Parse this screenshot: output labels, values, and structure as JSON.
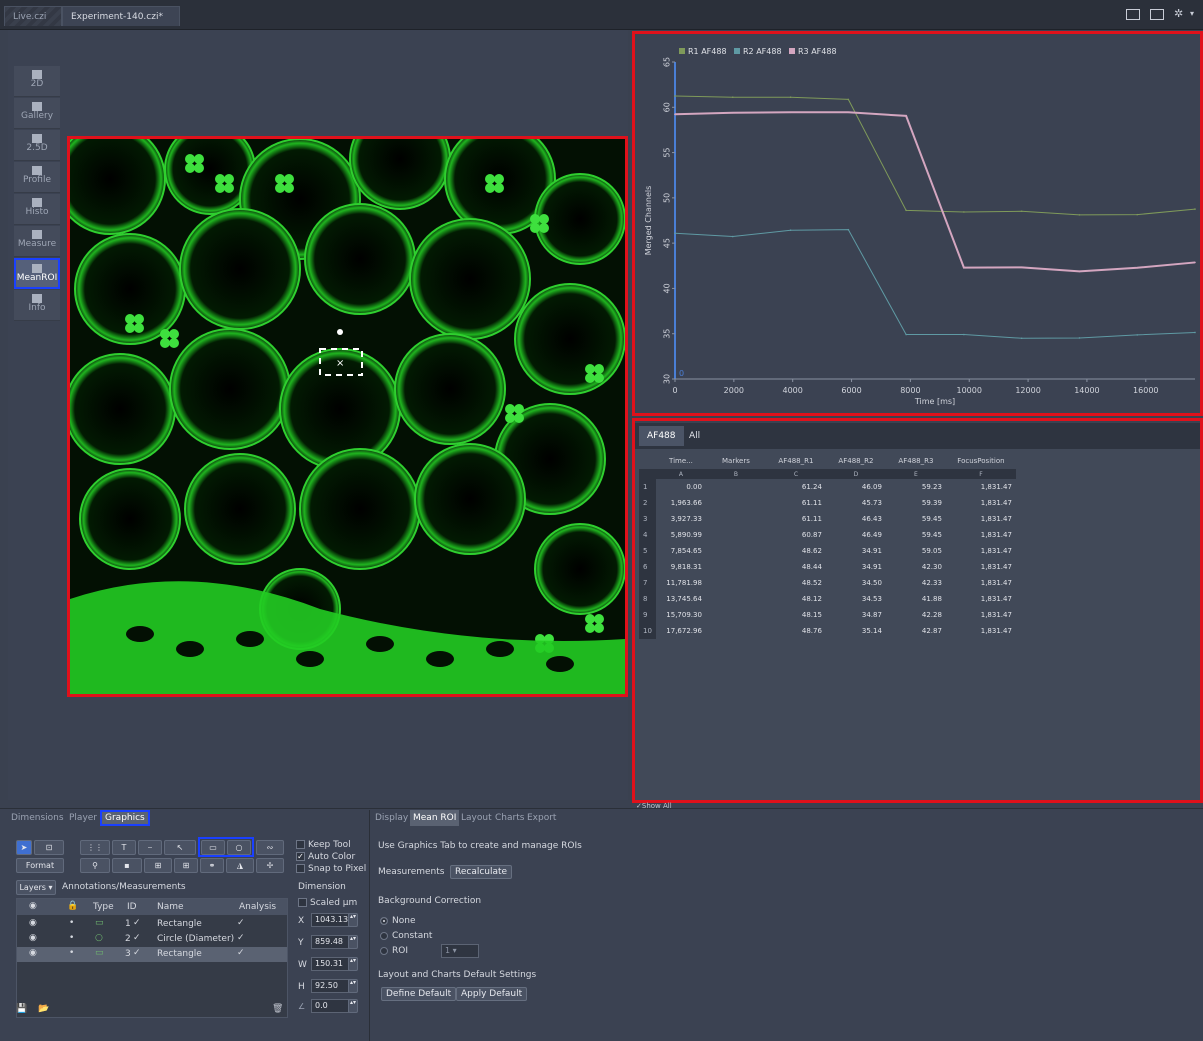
{
  "tabs": [
    {
      "label": "Live.czi",
      "active": false
    },
    {
      "label": "Experiment-140.czi*",
      "active": true
    }
  ],
  "view_buttons": [
    {
      "label": "2D",
      "icon": "2d-view-icon"
    },
    {
      "label": "Gallery",
      "icon": "gallery-icon"
    },
    {
      "label": "2.5D",
      "icon": "2.5d-icon"
    },
    {
      "label": "Profile",
      "icon": "profile-icon"
    },
    {
      "label": "Histo",
      "icon": "histogram-icon"
    },
    {
      "label": "Measure",
      "icon": "measure-icon"
    },
    {
      "label": "MeanROI",
      "icon": "mean-roi-icon",
      "selected": true
    },
    {
      "label": "Info",
      "icon": "info-icon"
    }
  ],
  "chart_data": {
    "type": "line",
    "legend": "top-left",
    "ylabel": "Merged Channels",
    "xlabel": "Time [ms]",
    "x_ticks": [
      "0",
      "2000",
      "4000",
      "6000",
      "8000",
      "10000",
      "12000",
      "14000",
      "16000"
    ],
    "y_ticks": [
      "30",
      "35",
      "40",
      "45",
      "50",
      "55",
      "60",
      "65"
    ],
    "xlim": [
      0,
      17672.96
    ],
    "ylim": [
      30,
      65
    ],
    "origin_label": "0",
    "x": [
      0,
      1963.66,
      3927.33,
      5890.99,
      7854.65,
      9818.31,
      11781.98,
      13745.64,
      15709.3,
      17672.96
    ],
    "series": [
      {
        "name": "R1 AF488",
        "color": "#7f9a5a",
        "values": [
          61.24,
          61.11,
          61.11,
          60.87,
          48.62,
          48.44,
          48.52,
          48.12,
          48.15,
          48.76
        ]
      },
      {
        "name": "R2 AF488",
        "color": "#5f9aa4",
        "values": [
          46.09,
          45.73,
          46.43,
          46.49,
          34.91,
          34.91,
          34.5,
          34.53,
          34.87,
          35.14
        ]
      },
      {
        "name": "R3 AF488",
        "color": "#d4a6c0",
        "values": [
          59.23,
          59.39,
          59.45,
          59.45,
          59.05,
          42.3,
          42.33,
          41.88,
          42.28,
          42.87
        ]
      }
    ]
  },
  "table": {
    "tabs": [
      "AF488",
      "All"
    ],
    "headers": [
      "Time...",
      "Markers",
      "AF488_R1",
      "AF488_R2",
      "AF488_R3",
      "FocusPosition"
    ],
    "letters": [
      "A",
      "B",
      "C",
      "D",
      "E",
      "F"
    ],
    "rows": [
      [
        "1",
        "0.00",
        "",
        "61.24",
        "46.09",
        "59.23",
        "1,831.47"
      ],
      [
        "2",
        "1,963.66",
        "",
        "61.11",
        "45.73",
        "59.39",
        "1,831.47"
      ],
      [
        "3",
        "3,927.33",
        "",
        "61.11",
        "46.43",
        "59.45",
        "1,831.47"
      ],
      [
        "4",
        "5,890.99",
        "",
        "60.87",
        "46.49",
        "59.45",
        "1,831.47"
      ],
      [
        "5",
        "7,854.65",
        "",
        "48.62",
        "34.91",
        "59.05",
        "1,831.47"
      ],
      [
        "6",
        "9,818.31",
        "",
        "48.44",
        "34.91",
        "42.30",
        "1,831.47"
      ],
      [
        "7",
        "11,781.98",
        "",
        "48.52",
        "34.50",
        "42.33",
        "1,831.47"
      ],
      [
        "8",
        "13,745.64",
        "",
        "48.12",
        "34.53",
        "41.88",
        "1,831.47"
      ],
      [
        "9",
        "15,709.30",
        "",
        "48.15",
        "34.87",
        "42.28",
        "1,831.47"
      ],
      [
        "10",
        "17,672.96",
        "",
        "48.76",
        "35.14",
        "42.87",
        "1,831.47"
      ]
    ],
    "show_all": "Show All"
  },
  "left_panel": {
    "tabs": [
      "Dimensions",
      "Player",
      "Graphics"
    ],
    "selected_tab": "Graphics",
    "format_label": "Format",
    "keep_tool": "Keep Tool",
    "auto_color": "Auto Color",
    "snap_to_pixel": "Snap to Pixel",
    "layers_label": "Layers",
    "annotations_label": "Annotations/Measurements",
    "layer_headers": [
      "Type",
      "ID",
      "Name",
      "Analysis"
    ],
    "layers": [
      {
        "id": "1",
        "name": "Rectangle",
        "type_icon": "rectangle-icon",
        "selected": false
      },
      {
        "id": "2",
        "name": "Circle (Diameter)",
        "type_icon": "circle-icon",
        "selected": false
      },
      {
        "id": "3",
        "name": "Rectangle",
        "type_icon": "rectangle-icon",
        "selected": true
      }
    ],
    "dimension": {
      "title": "Dimension",
      "scaled": "Scaled µm",
      "x_label": "X",
      "x": "1043.13",
      "y_label": "Y",
      "y": "859.48",
      "w_label": "W",
      "w": "150.31",
      "h_label": "H",
      "h": "92.50",
      "angle": "0.0"
    }
  },
  "right_panel": {
    "tabs": [
      "Display",
      "Mean ROI",
      "Layout",
      "Charts",
      "Export"
    ],
    "selected_tab": "Mean ROI",
    "hint": "Use Graphics Tab to create and manage ROIs",
    "measurements_label": "Measurements",
    "recalculate": "Recalculate",
    "background_title": "Background Correction",
    "bg_options": [
      "None",
      "Constant",
      "ROI"
    ],
    "bg_selected": "None",
    "roi_select": "1",
    "defaults_title": "Layout and Charts Default Settings",
    "define_default": "Define Default",
    "apply_default": "Apply Default"
  }
}
